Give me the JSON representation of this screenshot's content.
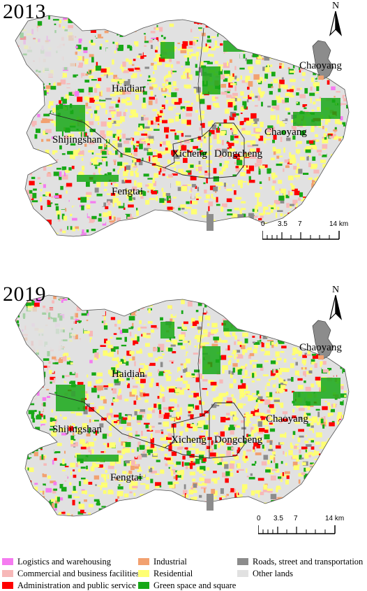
{
  "panels": [
    {
      "year": "2013",
      "districts": {
        "haidian": "Haidian",
        "chaoyang": "Chaoyang",
        "chaoyang_exclave": "Chaoyang",
        "shijingshan": "Shijingshan",
        "xicheng": "Xicheng",
        "dongcheng": "Dongcheng",
        "fengtai": "Fengtai"
      },
      "north": "N",
      "scale": {
        "labels": [
          "0",
          "3.5",
          "7",
          "14 km"
        ]
      }
    },
    {
      "year": "2019",
      "districts": {
        "haidian": "Haidian",
        "chaoyang": "Chaoyang",
        "chaoyang_exclave": "Chaoyang",
        "shijingshan": "Shijingshan",
        "xicheng": "Xicheng",
        "dongcheng": "Dongcheng",
        "fengtai": "Fengtai"
      },
      "north": "N",
      "scale": {
        "labels": [
          "0",
          "3.5",
          "7",
          "14 km"
        ]
      }
    }
  ],
  "legend": [
    {
      "label": "Logistics and warehousing",
      "color": "#f57bf0"
    },
    {
      "label": "Industrial",
      "color": "#f2a170"
    },
    {
      "label": "Roads, street and transportation",
      "color": "#8c8c8c"
    },
    {
      "label": "Commercial and business facilities",
      "color": "#f7b8b8"
    },
    {
      "label": "Residential",
      "color": "#ffff73"
    },
    {
      "label": "Other lands",
      "color": "#e1e1e1"
    },
    {
      "label": "Administration and public service",
      "color": "#ff0000"
    },
    {
      "label": "Green space and square",
      "color": "#17a817"
    }
  ],
  "colors": {
    "logistics": "#f57bf0",
    "commercial": "#f7b8b8",
    "administration": "#ff0000",
    "industrial": "#f2a170",
    "residential": "#ffff73",
    "green": "#17a817",
    "roads": "#8c8c8c",
    "other": "#e1e1e1"
  }
}
